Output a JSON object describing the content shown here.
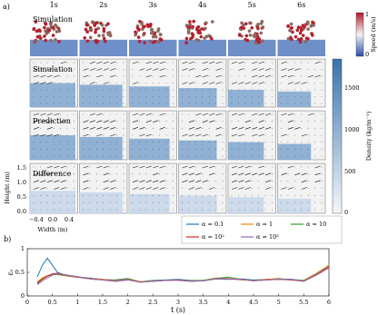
{
  "panel_a": {
    "label": "a)",
    "times": [
      "1s",
      "2s",
      "3s",
      "4s",
      "5s",
      "6s"
    ],
    "row_labels": [
      "Simulation",
      "Simulation",
      "Prediction",
      "Difference"
    ],
    "speed_colorbar": {
      "label": "Speed (m/s)",
      "ticks": [
        "1",
        "0"
      ]
    },
    "density_colorbar": {
      "label": "Density (kg/m⁻³)",
      "ticks": [
        "1500",
        "1000",
        "500",
        "0"
      ]
    },
    "height_axis": {
      "label": "Height (m)",
      "ticks": [
        "0.0",
        "0.5",
        "1.0",
        "1.5"
      ]
    },
    "width_axis": {
      "label": "Width (m)",
      "ticks": [
        "−0.4",
        "0.0",
        "0.4"
      ]
    }
  },
  "chart_data": {
    "type": "line",
    "panel_label": "b)",
    "xlabel": "t (s)",
    "ylabel": "εᵥ",
    "x": [
      0.2,
      0.3,
      0.4,
      0.5,
      0.6,
      0.8,
      1,
      1.25,
      1.5,
      1.75,
      2,
      2.25,
      2.5,
      2.75,
      3,
      3.25,
      3.5,
      3.75,
      4,
      4.25,
      4.5,
      4.75,
      5,
      5.25,
      5.5,
      5.75,
      6
    ],
    "series": [
      {
        "name": "α = 0.1",
        "color": "#1f77b4",
        "values": [
          0.4,
          0.65,
          0.8,
          0.65,
          0.5,
          0.42,
          0.4,
          0.38,
          0.35,
          0.34,
          0.37,
          0.3,
          0.33,
          0.34,
          0.35,
          0.33,
          0.33,
          0.36,
          0.35,
          0.36,
          0.34,
          0.35,
          0.36,
          0.35,
          0.33,
          0.45,
          0.63
        ]
      },
      {
        "name": "α = 1",
        "color": "#ff7f0e",
        "values": [
          0.3,
          0.38,
          0.43,
          0.46,
          0.45,
          0.42,
          0.4,
          0.37,
          0.35,
          0.33,
          0.36,
          0.3,
          0.32,
          0.33,
          0.34,
          0.32,
          0.33,
          0.38,
          0.37,
          0.34,
          0.33,
          0.35,
          0.37,
          0.34,
          0.33,
          0.48,
          0.65
        ]
      },
      {
        "name": "α = 10",
        "color": "#2ca02c",
        "values": [
          0.28,
          0.36,
          0.42,
          0.45,
          0.46,
          0.43,
          0.4,
          0.36,
          0.34,
          0.32,
          0.35,
          0.29,
          0.32,
          0.33,
          0.34,
          0.32,
          0.33,
          0.37,
          0.4,
          0.35,
          0.33,
          0.34,
          0.36,
          0.35,
          0.32,
          0.46,
          0.63
        ]
      },
      {
        "name": "α = 10²",
        "color": "#d62728",
        "values": [
          0.26,
          0.35,
          0.42,
          0.47,
          0.48,
          0.44,
          0.4,
          0.36,
          0.34,
          0.31,
          0.34,
          0.29,
          0.31,
          0.33,
          0.34,
          0.31,
          0.32,
          0.36,
          0.36,
          0.35,
          0.32,
          0.34,
          0.35,
          0.34,
          0.31,
          0.44,
          0.6
        ]
      },
      {
        "name": "α = 10³",
        "color": "#9467bd",
        "values": [
          0.24,
          0.32,
          0.38,
          0.44,
          0.47,
          0.44,
          0.41,
          0.36,
          0.34,
          0.31,
          0.34,
          0.29,
          0.31,
          0.33,
          0.33,
          0.31,
          0.32,
          0.36,
          0.36,
          0.35,
          0.32,
          0.34,
          0.35,
          0.35,
          0.31,
          0.45,
          0.62
        ]
      }
    ],
    "xlim": [
      0,
      6
    ],
    "xticks": [
      0,
      0.5,
      1,
      1.5,
      2,
      2.5,
      3,
      3.5,
      4,
      4.5,
      5,
      5.5,
      6
    ],
    "ylim": [
      0,
      1
    ],
    "yticks": [
      0,
      0.5,
      1
    ]
  }
}
